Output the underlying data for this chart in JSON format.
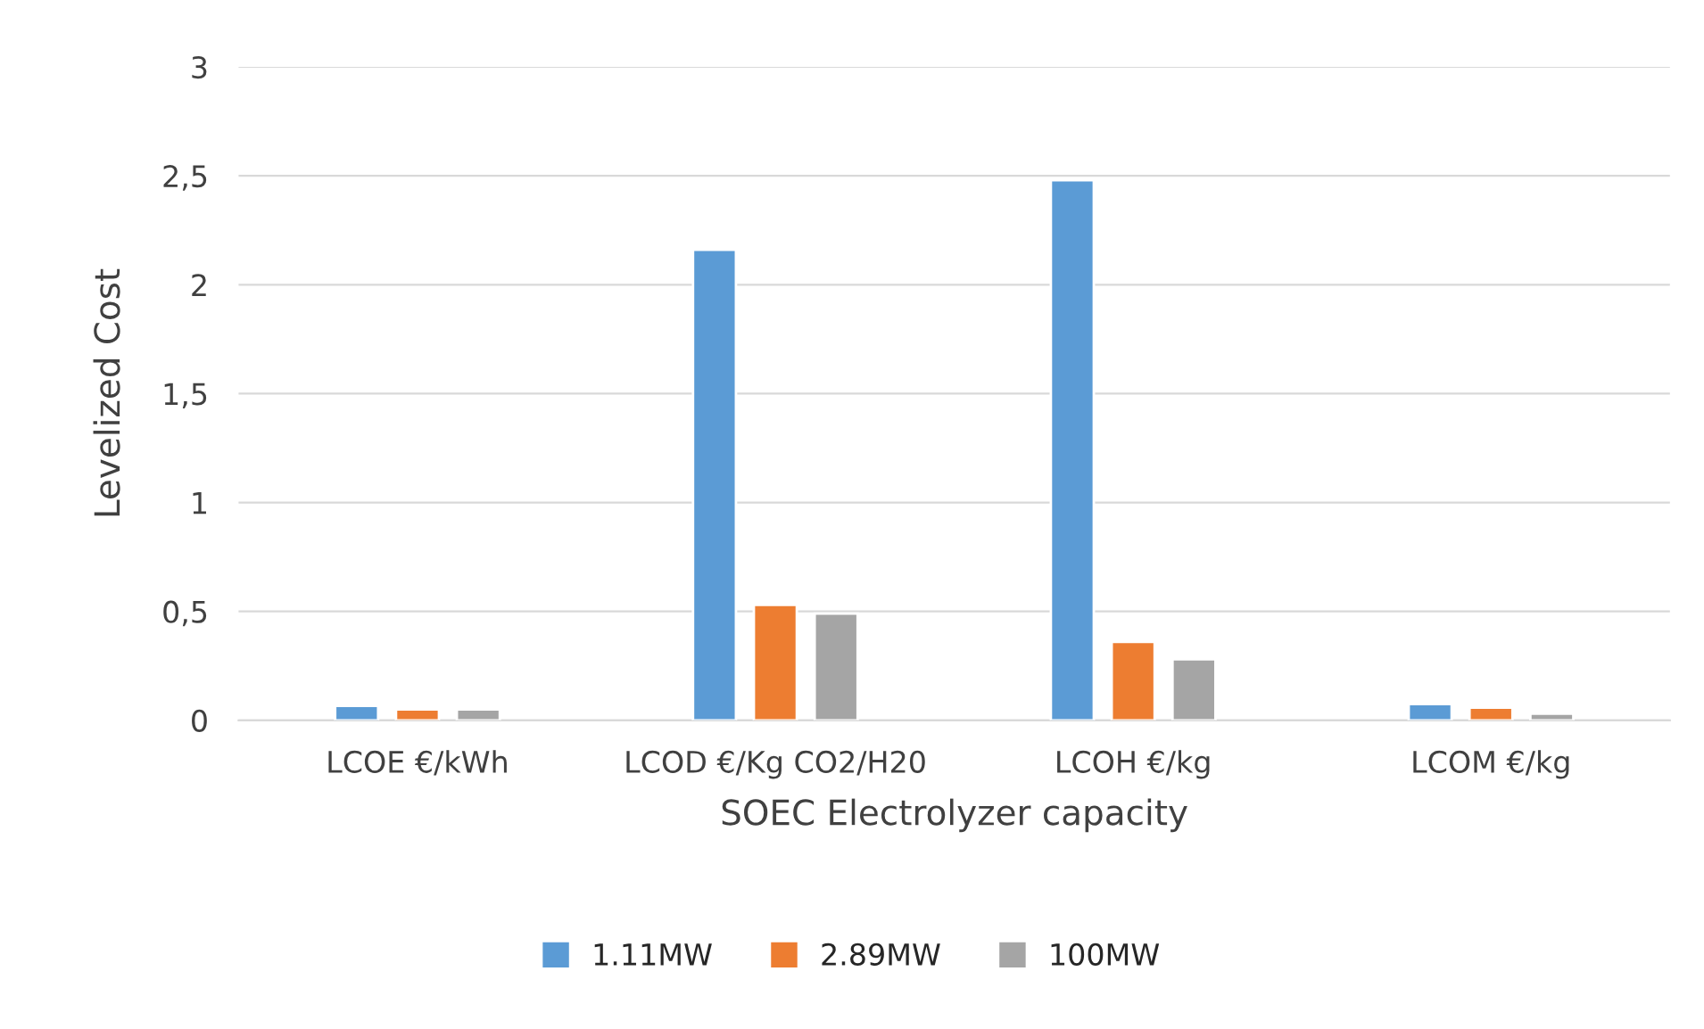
{
  "chart_data": {
    "type": "bar",
    "xlabel": "SOEC Electrolyzer capacity",
    "ylabel": "Levelized Cost",
    "categories": [
      "LCOE €/kWh",
      "LCOD €/Kg CO2/H20",
      "LCOH €/kg",
      "LCOM €/kg"
    ],
    "series": [
      {
        "name": "1.11MW",
        "color": "#5b9bd5",
        "values": [
          0.066,
          2.16,
          2.48,
          0.074
        ]
      },
      {
        "name": "2.89MW",
        "color": "#ed7d31",
        "values": [
          0.05,
          0.53,
          0.36,
          0.058
        ]
      },
      {
        "name": "100MW",
        "color": "#a5a5a5",
        "values": [
          0.05,
          0.49,
          0.28,
          0.03
        ]
      }
    ],
    "ylim": [
      0,
      3
    ],
    "yticks": [
      0,
      {
        "value": 0.5,
        "label": "0,5"
      },
      1,
      {
        "value": 1.5,
        "label": "1,5"
      },
      2,
      {
        "value": 2.5,
        "label": "2,5"
      },
      3
    ],
    "grid": "y",
    "legend": "bottom"
  }
}
